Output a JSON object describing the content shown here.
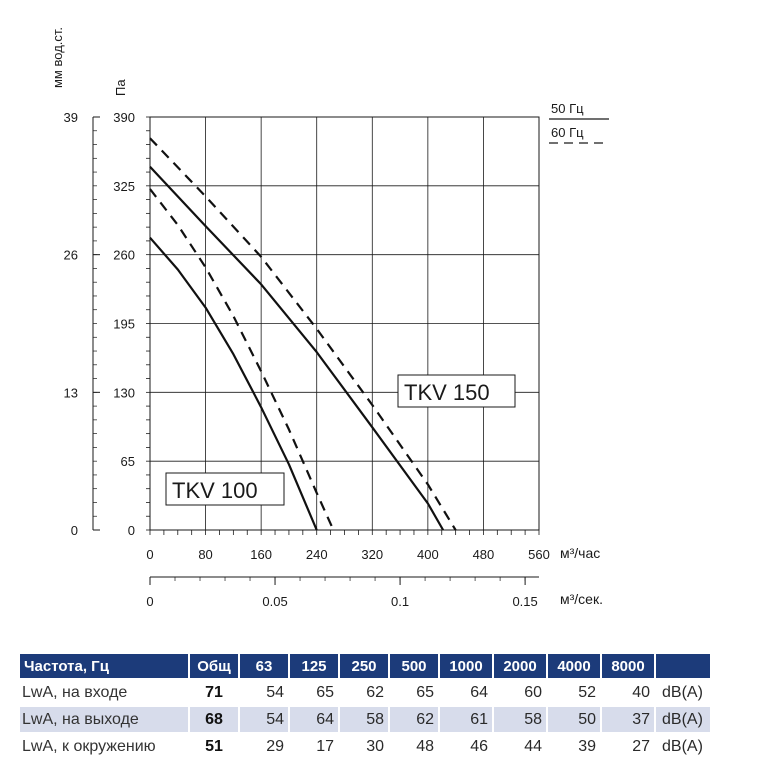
{
  "chart_data": {
    "type": "line",
    "ylabel_left": "мм вод.ст.",
    "ylabel": "Па",
    "x_unit_top": "м³/час",
    "x_unit_bottom": "м³/сек.",
    "y_ticks_pa": [
      "390",
      "325",
      "260",
      "195",
      "130",
      "65",
      "0"
    ],
    "y_ticks_mm": [
      "39",
      "26",
      "13",
      "0"
    ],
    "x_ticks_m3h": [
      "0",
      "80",
      "160",
      "240",
      "320",
      "400",
      "480",
      "560"
    ],
    "x_ticks_m3s": [
      "0",
      "0.05",
      "0.1",
      "0.15"
    ],
    "ylim": [
      0,
      390
    ],
    "xlim": [
      0,
      560
    ],
    "grid": true,
    "legend": [
      {
        "name": "50 Гц",
        "style": "solid"
      },
      {
        "name": "60 Гц",
        "style": "dashed"
      }
    ],
    "series": [
      {
        "group": "TKV 100",
        "style": "solid",
        "x": [
          0,
          40,
          80,
          120,
          160,
          200,
          240
        ],
        "y": [
          276,
          246,
          210,
          166,
          116,
          62,
          0
        ]
      },
      {
        "group": "TKV 100",
        "style": "dashed",
        "x": [
          0,
          40,
          80,
          120,
          160,
          200,
          240,
          264
        ],
        "y": [
          322,
          288,
          248,
          202,
          150,
          95,
          35,
          0
        ]
      },
      {
        "group": "TKV 150",
        "style": "solid",
        "x": [
          0,
          80,
          160,
          240,
          320,
          400,
          422
        ],
        "y": [
          343,
          287,
          232,
          168,
          97,
          25,
          0
        ]
      },
      {
        "group": "TKV 150",
        "style": "dashed",
        "x": [
          0,
          80,
          160,
          240,
          320,
          400,
          440
        ],
        "y": [
          370,
          315,
          258,
          190,
          118,
          43,
          0
        ]
      }
    ],
    "labels": [
      "TKV 150",
      "TKV 100"
    ]
  },
  "table": {
    "headers": [
      "Частота, Гц",
      "Общ",
      "63",
      "125",
      "250",
      "500",
      "1000",
      "2000",
      "4000",
      "8000"
    ],
    "rows": [
      {
        "label": "LwA, на входе",
        "total": "71",
        "values": [
          "54",
          "65",
          "62",
          "65",
          "64",
          "60",
          "52",
          "40"
        ],
        "unit": "dB(A)"
      },
      {
        "label": "LwA, на выходе",
        "total": "68",
        "values": [
          "54",
          "64",
          "58",
          "62",
          "61",
          "58",
          "50",
          "37"
        ],
        "unit": "dB(A)"
      },
      {
        "label": "LwA, к окружению",
        "total": "51",
        "values": [
          "29",
          "17",
          "30",
          "48",
          "46",
          "44",
          "39",
          "27"
        ],
        "unit": "dB(A)"
      }
    ]
  }
}
